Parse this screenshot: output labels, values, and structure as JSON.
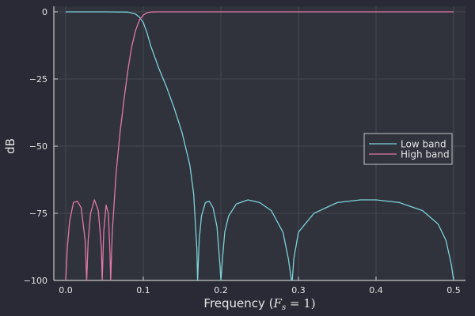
{
  "chart_data": {
    "type": "line",
    "title": "",
    "xlabel": "Frequency (F_s = 1)",
    "xlabel_parts": {
      "prefix": "Frequency (",
      "var": "F",
      "sub": "s",
      "suffix": " = 1)"
    },
    "ylabel": "dB",
    "xlim": [
      -0.015,
      0.515
    ],
    "ylim": [
      -100,
      0
    ],
    "xticks": [
      0.0,
      0.1,
      0.2,
      0.3,
      0.4,
      0.5
    ],
    "xtick_labels": [
      "0.0",
      "0.1",
      "0.2",
      "0.3",
      "0.4",
      "0.5"
    ],
    "yticks": [
      0,
      -25,
      -50,
      -75,
      -100
    ],
    "ytick_labels": [
      "0",
      "−25",
      "−50",
      "−75",
      "−100"
    ],
    "grid": true,
    "legend_position": "right-center",
    "series": [
      {
        "name": "Low band",
        "color": "#7dd3d8",
        "x": [
          0.0,
          0.05,
          0.08,
          0.09,
          0.095,
          0.1,
          0.105,
          0.11,
          0.12,
          0.13,
          0.14,
          0.15,
          0.16,
          0.165,
          0.169,
          0.17,
          0.172,
          0.175,
          0.18,
          0.185,
          0.19,
          0.195,
          0.199,
          0.2,
          0.202,
          0.205,
          0.21,
          0.22,
          0.235,
          0.25,
          0.265,
          0.28,
          0.287,
          0.291,
          0.292,
          0.294,
          0.3,
          0.32,
          0.35,
          0.38,
          0.4,
          0.43,
          0.46,
          0.48,
          0.49,
          0.497,
          0.5
        ],
        "y": [
          0,
          0,
          -0.1,
          -0.8,
          -2,
          -4,
          -8,
          -13,
          -21,
          -28,
          -36,
          -45,
          -57,
          -68,
          -88,
          -100,
          -85,
          -76,
          -71,
          -70.5,
          -73,
          -80,
          -95,
          -100,
          -92,
          -82,
          -76,
          -71.5,
          -70,
          -71,
          -74,
          -82,
          -92,
          -100,
          -100,
          -92,
          -82,
          -75,
          -71,
          -70,
          -70,
          -71,
          -74,
          -79,
          -85,
          -94,
          -100
        ]
      },
      {
        "name": "High band",
        "color": "#e07aa8",
        "x": [
          0.0,
          0.002,
          0.005,
          0.01,
          0.015,
          0.02,
          0.025,
          0.027,
          0.029,
          0.032,
          0.037,
          0.042,
          0.046,
          0.047,
          0.049,
          0.052,
          0.055,
          0.057,
          0.058,
          0.06,
          0.065,
          0.07,
          0.075,
          0.08,
          0.085,
          0.09,
          0.095,
          0.1,
          0.105,
          0.11,
          0.12,
          0.13,
          0.5
        ],
        "y": [
          -100,
          -88,
          -78,
          -71,
          -70.5,
          -73,
          -85,
          -100,
          -85,
          -75,
          -70,
          -74,
          -88,
          -100,
          -82,
          -72,
          -75,
          -90,
          -100,
          -82,
          -60,
          -45,
          -33,
          -22,
          -13,
          -7,
          -3,
          -1.2,
          -0.3,
          -0.05,
          0,
          0,
          0
        ]
      }
    ]
  }
}
